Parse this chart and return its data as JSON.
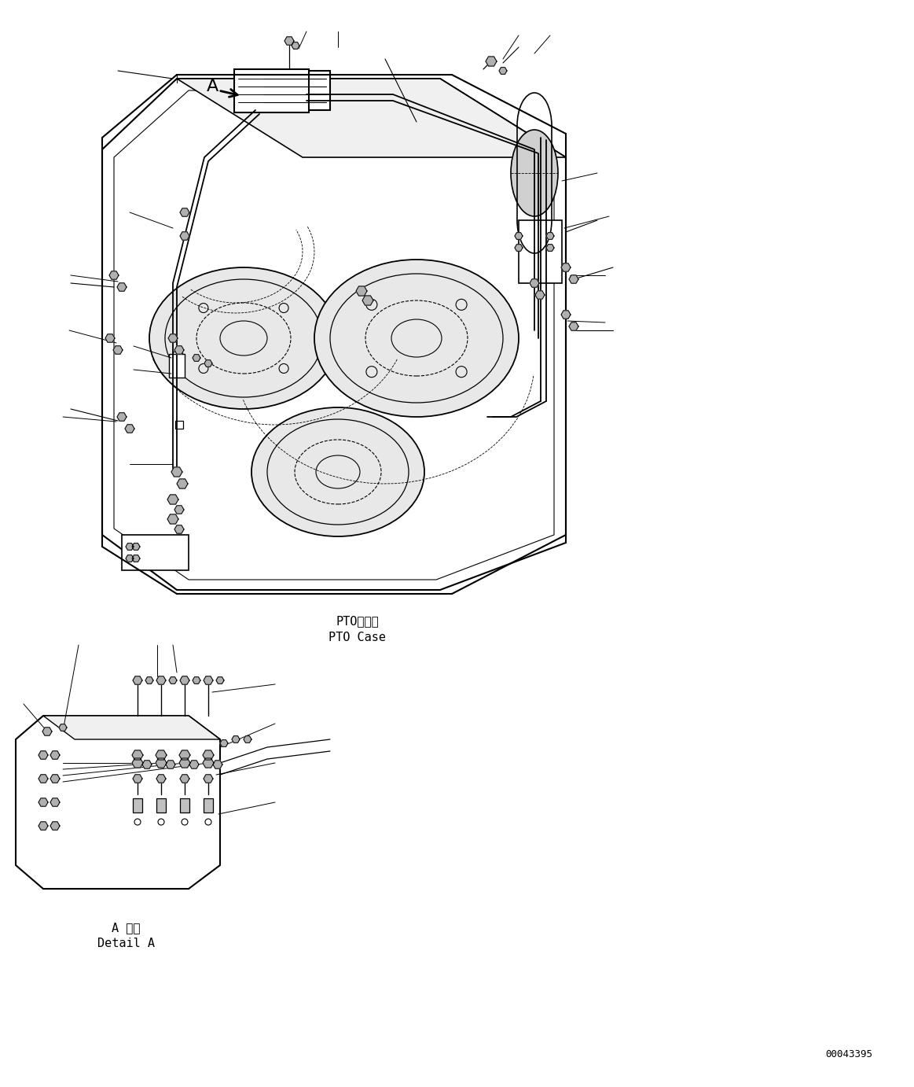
{
  "title": "",
  "bg_color": "#ffffff",
  "line_color": "#000000",
  "pto_label_jp": "PTOケース",
  "pto_label_en": "PTO Case",
  "detail_label_jp": "A 詳細",
  "detail_label_en": "Detail A",
  "ref_number": "00043395",
  "figure_size": [
    11.63,
    13.82
  ],
  "dpi": 100
}
